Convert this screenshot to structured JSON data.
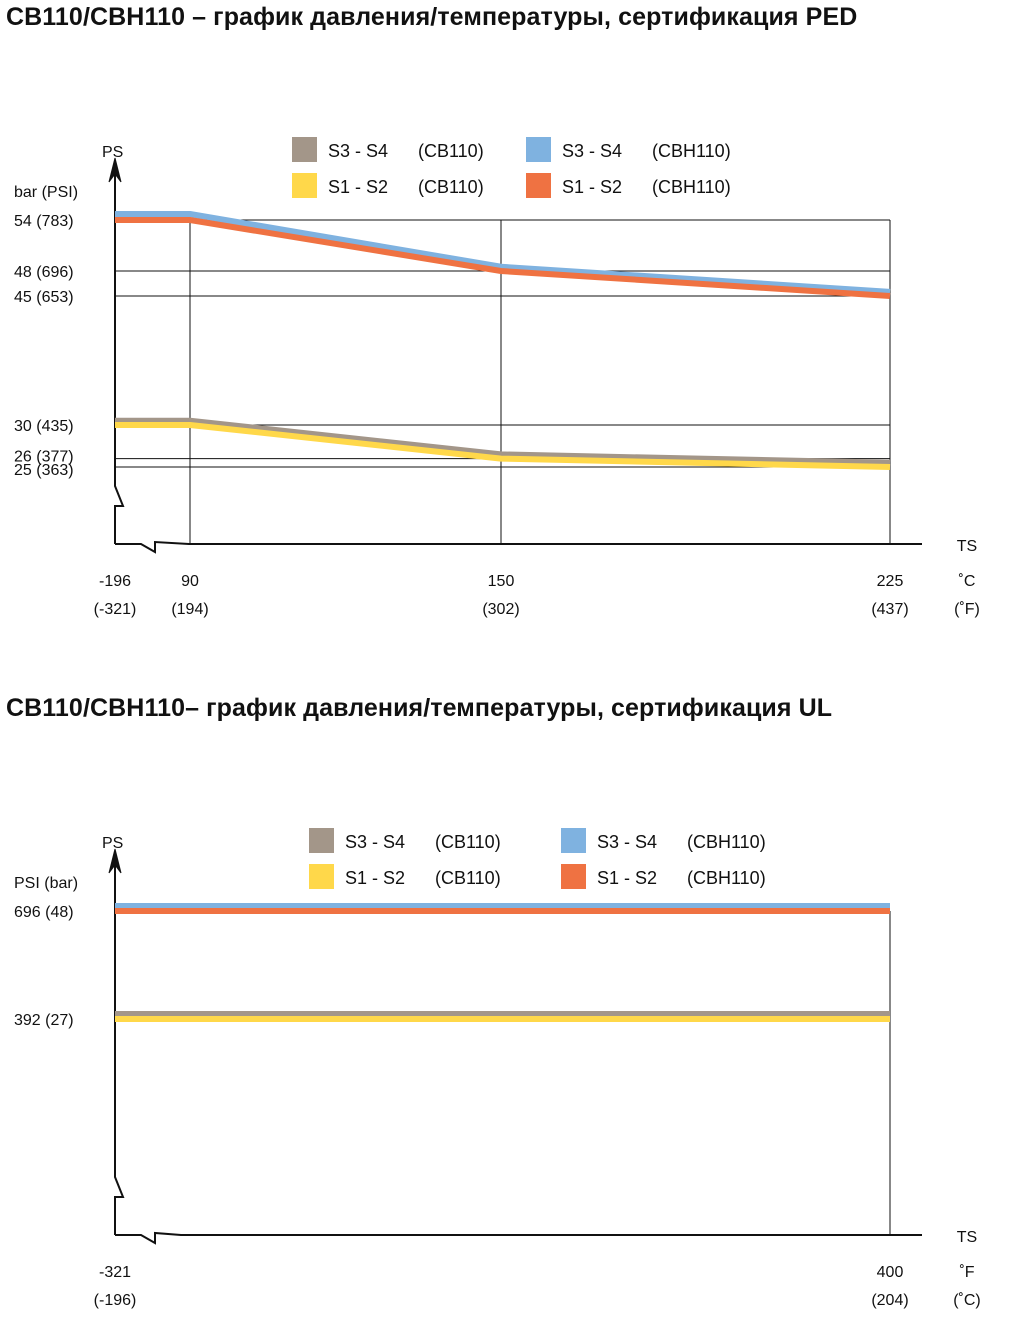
{
  "chart_data": [
    {
      "type": "line",
      "title": "CB110/CBH110 – график давления/температуры, сертификация PED",
      "ylabel": "PS",
      "ylabel_units": "bar (PSI)",
      "xlabel": "TS",
      "x_unit_primary": "˚C",
      "x_unit_secondary": "(˚F)",
      "x_ticks": [
        {
          "value": -196,
          "label": "-196",
          "sub": "(-321)"
        },
        {
          "value": 90,
          "label": "90",
          "sub": "(194)"
        },
        {
          "value": 150,
          "label": "150",
          "sub": "(302)"
        },
        {
          "value": 225,
          "label": "225",
          "sub": "(437)"
        }
      ],
      "y_ticks": [
        {
          "value": 54,
          "label": "54  (783)"
        },
        {
          "value": 48,
          "label": "48  (696)"
        },
        {
          "value": 45,
          "label": "45  (653)"
        },
        {
          "value": 30,
          "label": "30  (435)"
        },
        {
          "value": 26,
          "label": "26  (377)"
        },
        {
          "value": 25,
          "label": "25  (363)"
        }
      ],
      "legend": [
        {
          "series": "S3 - S4",
          "model": "(CB110)",
          "color": "#a39689"
        },
        {
          "series": "S3 - S4",
          "model": "(CBH110)",
          "color": "#7fb2e0"
        },
        {
          "series": "S1 - S2",
          "model": "(CB110)",
          "color": "#ffd84a"
        },
        {
          "series": "S1 - S2",
          "model": "(CBH110)",
          "color": "#ef7242"
        }
      ],
      "series": [
        {
          "name": "S3 - S4 (CBH110)",
          "color": "#7fb2e0",
          "x": [
            -196,
            90,
            150,
            225
          ],
          "y": [
            55,
            55,
            48.5,
            45.5
          ]
        },
        {
          "name": "S1 - S2 (CBH110)",
          "color": "#ef7242",
          "x": [
            -196,
            90,
            150,
            225
          ],
          "y": [
            54,
            54,
            48,
            45
          ]
        },
        {
          "name": "S3 - S4 (CB110)",
          "color": "#a39689",
          "x": [
            -196,
            90,
            150,
            225
          ],
          "y": [
            30.5,
            30.5,
            26.5,
            25.5
          ]
        },
        {
          "name": "S1 - S2 (CB110)",
          "color": "#ffd84a",
          "x": [
            -196,
            90,
            150,
            225
          ],
          "y": [
            30,
            30,
            26,
            25
          ]
        }
      ]
    },
    {
      "type": "line",
      "title": "CB110/CBH110– график давления/температуры, сертификация UL",
      "ylabel": "PS",
      "ylabel_units": "PSI  (bar)",
      "xlabel": "TS",
      "x_unit_primary": "˚F",
      "x_unit_secondary": "(˚C)",
      "x_ticks": [
        {
          "value": -321,
          "label": "-321",
          "sub": "(-196)"
        },
        {
          "value": 400,
          "label": "400",
          "sub": "(204)"
        }
      ],
      "y_ticks": [
        {
          "value": 696,
          "label": "696 (48)"
        },
        {
          "value": 392,
          "label": "392 (27)"
        }
      ],
      "legend": [
        {
          "series": "S3 - S4",
          "model": "(CB110)",
          "color": "#a39689"
        },
        {
          "series": "S3 - S4",
          "model": "(CBH110)",
          "color": "#7fb2e0"
        },
        {
          "series": "S1 - S2",
          "model": "(CB110)",
          "color": "#ffd84a"
        },
        {
          "series": "S1 - S2",
          "model": "(CBH110)",
          "color": "#ef7242"
        }
      ],
      "series": [
        {
          "name": "S3 - S4 (CBH110)",
          "color": "#7fb2e0",
          "x": [
            -321,
            400
          ],
          "y": [
            710,
            710
          ]
        },
        {
          "name": "S1 - S2 (CBH110)",
          "color": "#ef7242",
          "x": [
            -321,
            400
          ],
          "y": [
            696,
            696
          ]
        },
        {
          "name": "S3 - S4 (CB110)",
          "color": "#a39689",
          "x": [
            -321,
            400
          ],
          "y": [
            406,
            406
          ]
        },
        {
          "name": "S1 - S2 (CB110)",
          "color": "#ffd84a",
          "x": [
            -321,
            400
          ],
          "y": [
            392,
            392
          ]
        }
      ]
    }
  ]
}
